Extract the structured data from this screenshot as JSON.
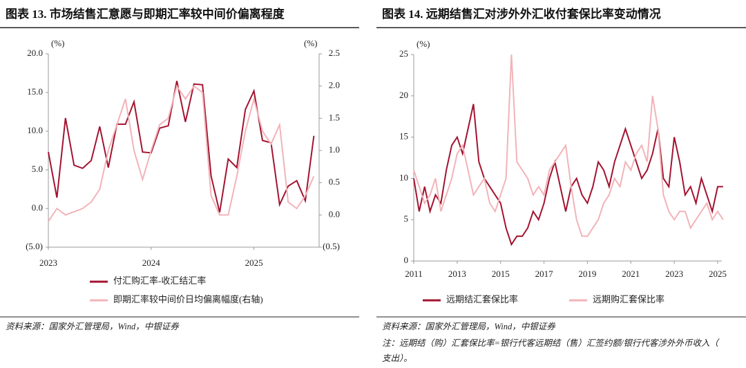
{
  "chart_data": [
    {
      "type": "line",
      "title": "图表 13. 市场结售汇意愿与即期汇率较中间价偏离程度",
      "y_label": "(%)",
      "y2_label": "(%)",
      "source": "资料来源：国家外汇管理局，Wind，中银证券",
      "categories": [
        "2023",
        null,
        null,
        null,
        null,
        null,
        null,
        null,
        null,
        null,
        null,
        null,
        "2024",
        null,
        null,
        null,
        null,
        null,
        null,
        null,
        null,
        null,
        null,
        null,
        "2025",
        null,
        null,
        null,
        null,
        null,
        null,
        null
      ],
      "ylim": [
        -5,
        20
      ],
      "yticks": [
        {
          "value": -5,
          "label": "(5.0)"
        },
        {
          "value": 0,
          "label": "0.0"
        },
        {
          "value": 5,
          "label": "5.0"
        },
        {
          "value": 10,
          "label": "10.0"
        },
        {
          "value": 15,
          "label": "15.0"
        },
        {
          "value": 20,
          "label": "20.0"
        }
      ],
      "y2lim": [
        -0.5,
        2.5
      ],
      "y2ticks": [
        {
          "value": -0.5,
          "label": "(0.5)"
        },
        {
          "value": 0,
          "label": "0.0"
        },
        {
          "value": 0.5,
          "label": "0.5"
        },
        {
          "value": 1,
          "label": "1.0"
        },
        {
          "value": 1.5,
          "label": "1.5"
        },
        {
          "value": 2,
          "label": "2.0"
        },
        {
          "value": 2.5,
          "label": "2.5"
        }
      ],
      "series": [
        {
          "name": "付汇购汇率-收汇结汇率",
          "color": "#a3122f",
          "values": [
            7.3,
            1.4,
            11.7,
            5.6,
            5.2,
            6.2,
            10.6,
            5.3,
            10.9,
            10.9,
            13.8,
            7.3,
            7.2,
            10.4,
            10.7,
            16.5,
            11.2,
            16.1,
            16.0,
            4.2,
            -0.5,
            6.4,
            5.3,
            12.8,
            15.2,
            8.8,
            8.5,
            0.5,
            2.9,
            3.6,
            1.0,
            9.4
          ]
        },
        {
          "name": "即期汇率较中间价日均偏离幅度(右轴)",
          "color": "#f2b3b8",
          "axis": "y2",
          "values": [
            -0.1,
            0.1,
            0.0,
            0.05,
            0.1,
            0.2,
            0.4,
            1.0,
            1.4,
            1.8,
            1.0,
            0.55,
            1.0,
            1.4,
            1.5,
            2.0,
            1.8,
            2.0,
            1.9,
            0.3,
            0.0,
            0.0,
            0.6,
            1.3,
            1.8,
            1.3,
            1.1,
            1.4,
            0.2,
            0.1,
            0.3,
            0.6
          ]
        }
      ]
    },
    {
      "type": "line",
      "title": "图表 14. 远期结售汇对涉外外汇收付套保比率变动情况",
      "y_label": "(%)",
      "source": "资料来源：国家外汇管理局，Wind，中银证券",
      "note": "注：远期结（购）汇套保比率=银行代客远期结（售）汇签约额/银行代客涉外外币收入（支出）。",
      "categories": [
        "2011",
        null,
        null,
        null,
        null,
        null,
        null,
        null,
        "2013",
        null,
        null,
        null,
        null,
        null,
        null,
        null,
        "2015",
        null,
        null,
        null,
        null,
        null,
        null,
        null,
        "2017",
        null,
        null,
        null,
        null,
        null,
        null,
        null,
        "2019",
        null,
        null,
        null,
        null,
        null,
        null,
        null,
        "2021",
        null,
        null,
        null,
        null,
        null,
        null,
        null,
        "2023",
        null,
        null,
        null,
        null,
        null,
        null,
        null,
        "2025",
        null
      ],
      "ylim": [
        0,
        25
      ],
      "yticks": [
        0,
        5,
        10,
        15,
        20,
        25
      ],
      "series": [
        {
          "name": "远期结汇套保比率",
          "color": "#a3122f",
          "values": [
            10,
            6,
            9,
            6,
            8,
            7,
            11,
            14,
            15,
            13,
            16,
            19,
            12,
            10,
            9,
            8,
            7,
            4,
            2,
            3,
            3,
            4,
            6,
            5,
            7,
            10,
            12,
            9,
            6,
            9,
            10,
            8,
            7,
            9,
            12,
            11,
            9,
            12,
            14,
            16,
            14,
            12,
            10,
            11,
            13,
            16,
            10,
            9,
            15,
            12,
            8,
            9,
            7,
            10,
            8,
            6,
            9,
            9
          ]
        },
        {
          "name": "远期购汇套保比率",
          "color": "#f2b3b8",
          "values": [
            11,
            9,
            7,
            8,
            10,
            6,
            8,
            10,
            13,
            14,
            11,
            8,
            9,
            10,
            7,
            6,
            8,
            10,
            25,
            12,
            11,
            10,
            8,
            9,
            8,
            11,
            12,
            13,
            14,
            9,
            5,
            3,
            3,
            4,
            5,
            7,
            8,
            10,
            9,
            12,
            11,
            13,
            14,
            12,
            20,
            16,
            8,
            6,
            5,
            6,
            6,
            4,
            5,
            6,
            7,
            5,
            6,
            5
          ]
        }
      ]
    }
  ]
}
